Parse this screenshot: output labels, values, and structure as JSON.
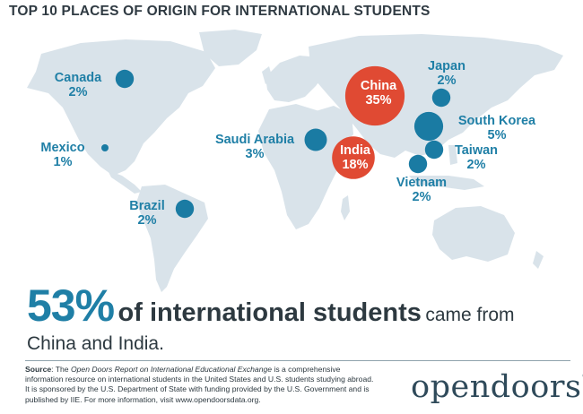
{
  "title": "TOP 10 PLACES OF ORIGIN FOR INTERNATIONAL STUDENTS",
  "colors": {
    "small_dot": "#1a7ba3",
    "big_dot": "#e04a33",
    "land": "#d9e3ea",
    "accent": "#1f7fa6"
  },
  "places": [
    {
      "name": "China",
      "percent": "35%",
      "value": 35,
      "style": "big"
    },
    {
      "name": "India",
      "percent": "18%",
      "value": 18,
      "style": "big"
    },
    {
      "name": "South Korea",
      "percent": "5%",
      "value": 5,
      "style": "small"
    },
    {
      "name": "Saudi Arabia",
      "percent": "3%",
      "value": 3,
      "style": "small"
    },
    {
      "name": "Canada",
      "percent": "2%",
      "value": 2,
      "style": "small"
    },
    {
      "name": "Japan",
      "percent": "2%",
      "value": 2,
      "style": "small"
    },
    {
      "name": "Taiwan",
      "percent": "2%",
      "value": 2,
      "style": "small"
    },
    {
      "name": "Vietnam",
      "percent": "2%",
      "value": 2,
      "style": "small"
    },
    {
      "name": "Brazil",
      "percent": "2%",
      "value": 2,
      "style": "small"
    },
    {
      "name": "Mexico",
      "percent": "1%",
      "value": 1,
      "style": "small"
    }
  ],
  "headline": {
    "percent": "53%",
    "bold_text": "of international students",
    "plain_text": "came from",
    "line2": "China and India."
  },
  "source": {
    "label": "Source",
    "text_1": ": The ",
    "report_title": "Open Doors Report on International Educational Exchange",
    "text_2": " is a comprehensive information resource on international students in the United States and U.S. students studying abroad. It is sponsored by the U.S. Department of State with funding provided by the U.S. Government and is published by IIE. For more information, visit www.opendoorsdata.org."
  },
  "logo": {
    "text": "opendoors",
    "mark": "®"
  }
}
